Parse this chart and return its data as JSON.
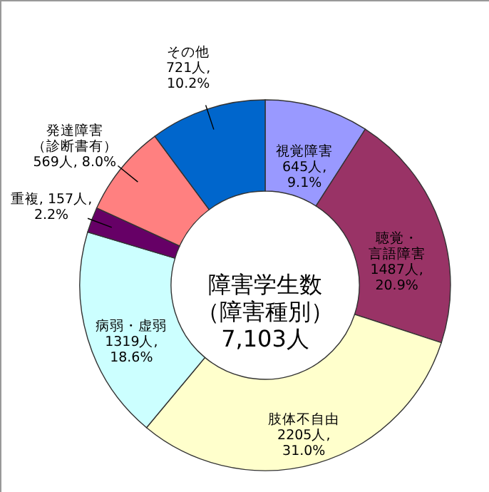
{
  "chart_data": {
    "type": "donut",
    "title": "障害学生数（障害種別）",
    "annotations": [
      "7,103人"
    ],
    "categories": [
      "視覚障害",
      "聴覚・言語障害",
      "肢体不自由",
      "病弱・虚弱",
      "重複",
      "発達障害（診断書有）",
      "その他"
    ],
    "values": [
      645,
      1487,
      2205,
      1319,
      157,
      569,
      721
    ],
    "colors": [
      "#9999ff",
      "#993366",
      "#ffffcc",
      "#ccffff",
      "#660066",
      "#ff8080",
      "#0066cc"
    ],
    "value_labels": [
      "645人,\n9.1%",
      "1487人,\n20.9%",
      "2205人,\n31.0%",
      "1319人,\n18.6%",
      "157人,\n2.2%",
      "569人, 8.0%",
      "721人,\n10.2%"
    ]
  }
}
